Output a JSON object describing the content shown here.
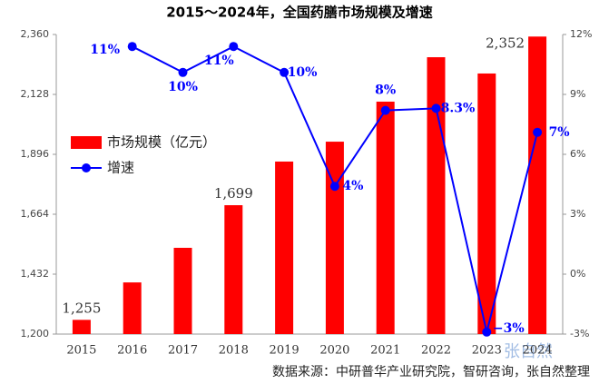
{
  "chart_data": {
    "type": "bar_line",
    "title": "2015～2024年，全国药膳市场规模及增速",
    "categories": [
      "2015",
      "2016",
      "2017",
      "2018",
      "2019",
      "2020",
      "2021",
      "2022",
      "2023",
      "2024"
    ],
    "series": [
      {
        "name": "市场规模（亿元）",
        "type": "bar",
        "color": "#ff0000",
        "values": [
          1255,
          1400,
          1534,
          1699,
          1868,
          1945,
          2100,
          2272,
          2209,
          2352
        ],
        "value_labels": [
          "1,255",
          null,
          null,
          "1,699",
          null,
          null,
          null,
          null,
          null,
          "2,352"
        ]
      },
      {
        "name": "增速",
        "type": "line",
        "axis": "y2",
        "color": "#0000ff",
        "values": [
          null,
          11.4,
          10.1,
          11.4,
          10.1,
          4.4,
          8.2,
          8.3,
          -2.9,
          7.1
        ],
        "value_labels": [
          null,
          "11%",
          "10%",
          "11%",
          "10%",
          "4%",
          "8%",
          "8.3%",
          "−3%",
          "7%"
        ]
      }
    ],
    "ylim": [
      1200,
      2360
    ],
    "yticks": [
      {
        "value": 1200,
        "label": "1,200"
      },
      {
        "value": 1432,
        "label": "1,432"
      },
      {
        "value": 1664,
        "label": "1,664"
      },
      {
        "value": 1896,
        "label": "1,896"
      },
      {
        "value": 2128,
        "label": "2,128"
      },
      {
        "value": 2360,
        "label": "2,360"
      }
    ],
    "y2lim": [
      -3,
      12
    ],
    "y2ticks": [
      {
        "value": -3,
        "label": "-3%"
      },
      {
        "value": 0,
        "label": "0%"
      },
      {
        "value": 3,
        "label": "3%"
      },
      {
        "value": 6,
        "label": "6%"
      },
      {
        "value": 9,
        "label": "9%"
      },
      {
        "value": 12,
        "label": "12%"
      }
    ],
    "legend": "left",
    "source": "数据来源：中研普华产业研究院，智研咨询，张自然整理",
    "watermark": "张自然"
  }
}
